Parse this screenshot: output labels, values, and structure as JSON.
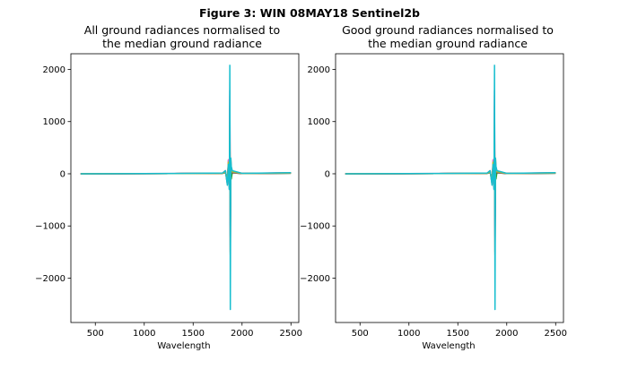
{
  "figure": {
    "suptitle": "Figure 3: WIN 08MAY18  Sentinel2b"
  },
  "chart_data": [
    {
      "type": "line",
      "title_lines": [
        "All ground radiances normalised to",
        "the median ground radiance"
      ],
      "xlabel": "Wavelength",
      "ylabel": "",
      "xlim": [
        250,
        2580
      ],
      "ylim": [
        -2850,
        2300
      ],
      "xticks": [
        500,
        1000,
        1500,
        2000,
        2500
      ],
      "yticks": [
        -2000,
        -1000,
        0,
        1000,
        2000
      ],
      "xtick_labels": [
        "500",
        "1000",
        "1500",
        "2000",
        "2500"
      ],
      "ytick_labels": [
        "−2000",
        "−1000",
        "0",
        "1000",
        "2000"
      ],
      "grid": false,
      "series": [
        {
          "color": "#1f77b4",
          "x": [
            350,
            1300,
            1800,
            1830,
            1850,
            1860,
            1870,
            1875,
            1880,
            1885,
            1890,
            1900,
            2000,
            2500
          ],
          "y": [
            0,
            4,
            10,
            40,
            -120,
            100,
            -300,
            600,
            -600,
            200,
            -50,
            20,
            5,
            12
          ]
        },
        {
          "color": "#ff7f0e",
          "x": [
            350,
            1300,
            1800,
            1830,
            1850,
            1860,
            1870,
            1875,
            1880,
            1885,
            1890,
            1900,
            2000,
            2500
          ],
          "y": [
            0,
            5,
            12,
            60,
            -200,
            150,
            -250,
            1300,
            -1550,
            300,
            100,
            40,
            8,
            15
          ]
        },
        {
          "color": "#2ca02c",
          "x": [
            350,
            1300,
            1800,
            1830,
            1850,
            1860,
            1870,
            1875,
            1880,
            1885,
            1890,
            1900,
            2000,
            2500
          ],
          "y": [
            0,
            3,
            8,
            20,
            -100,
            120,
            -150,
            600,
            -800,
            150,
            -100,
            30,
            4,
            10
          ]
        },
        {
          "color": "#d62728",
          "x": [
            350,
            1300,
            1800,
            1830,
            1850,
            1860,
            1870,
            1875,
            1880,
            1885,
            1890,
            1900,
            2000,
            2500
          ],
          "y": [
            0,
            4,
            10,
            40,
            -150,
            200,
            -100,
            800,
            -1000,
            100,
            120,
            50,
            6,
            14
          ]
        },
        {
          "color": "#9467bd",
          "x": [
            350,
            1300,
            1800,
            1830,
            1850,
            1860,
            1870,
            1875,
            1880,
            1885,
            1890,
            1900,
            2000,
            2500
          ],
          "y": [
            0,
            5,
            12,
            50,
            -200,
            250,
            -200,
            1600,
            -1200,
            200,
            80,
            30,
            7,
            18
          ]
        },
        {
          "color": "#8c564b",
          "x": [
            350,
            1300,
            1800,
            1830,
            1850,
            1860,
            1870,
            1875,
            1880,
            1885,
            1890,
            1900,
            2000,
            2500
          ],
          "y": [
            0,
            3,
            9,
            30,
            -120,
            130,
            -80,
            900,
            -1500,
            150,
            60,
            20,
            5,
            11
          ]
        },
        {
          "color": "#e377c2",
          "x": [
            350,
            1300,
            1800,
            1830,
            1850,
            1860,
            1870,
            1875,
            1880,
            1885,
            1890,
            1900,
            2000,
            2500
          ],
          "y": [
            0,
            6,
            14,
            60,
            -180,
            270,
            -220,
            1500,
            -1100,
            250,
            90,
            40,
            8,
            20
          ]
        },
        {
          "color": "#7f7f7f",
          "x": [
            350,
            1300,
            1800,
            1830,
            1850,
            1860,
            1870,
            1875,
            1880,
            1885,
            1890,
            1900,
            2000,
            2500
          ],
          "y": [
            0,
            4,
            10,
            30,
            -80,
            160,
            -180,
            700,
            -700,
            180,
            70,
            30,
            6,
            13
          ]
        },
        {
          "color": "#bcbd22",
          "x": [
            350,
            1300,
            1800,
            1830,
            1850,
            1860,
            1870,
            1875,
            1880,
            1885,
            1890,
            1900,
            2000,
            2500
          ],
          "y": [
            0,
            5,
            11,
            40,
            -150,
            220,
            -160,
            1000,
            -900,
            210,
            90,
            40,
            7,
            16
          ]
        },
        {
          "color": "#17becf",
          "x": [
            350,
            1300,
            1800,
            1830,
            1850,
            1860,
            1870,
            1875,
            1880,
            1885,
            1890,
            1900,
            2000,
            2500
          ],
          "y": [
            0,
            6,
            14,
            60,
            -220,
            180,
            -300,
            2080,
            -2600,
            300,
            140,
            60,
            9,
            22
          ]
        }
      ]
    },
    {
      "type": "line",
      "title_lines": [
        "Good ground radiances normalised to",
        "the median ground radiance"
      ],
      "xlabel": "Wavelength",
      "ylabel": "",
      "xlim": [
        250,
        2580
      ],
      "ylim": [
        -2850,
        2300
      ],
      "xticks": [
        500,
        1000,
        1500,
        2000,
        2500
      ],
      "yticks": [
        -2000,
        -1000,
        0,
        1000,
        2000
      ],
      "xtick_labels": [
        "500",
        "1000",
        "1500",
        "2000",
        "2500"
      ],
      "ytick_labels": [
        "−2000",
        "−1000",
        "0",
        "1000",
        "2000"
      ],
      "grid": false,
      "series": [
        {
          "color": "#1f77b4",
          "x": [
            350,
            1300,
            1800,
            1830,
            1850,
            1860,
            1870,
            1875,
            1880,
            1885,
            1890,
            1900,
            2000,
            2500
          ],
          "y": [
            0,
            4,
            10,
            40,
            -120,
            100,
            -300,
            600,
            -600,
            200,
            -50,
            20,
            5,
            12
          ]
        },
        {
          "color": "#ff7f0e",
          "x": [
            350,
            1300,
            1800,
            1830,
            1850,
            1860,
            1870,
            1875,
            1880,
            1885,
            1890,
            1900,
            2000,
            2500
          ],
          "y": [
            0,
            5,
            12,
            60,
            -200,
            150,
            -250,
            1300,
            -1550,
            300,
            100,
            40,
            8,
            15
          ]
        },
        {
          "color": "#2ca02c",
          "x": [
            350,
            1300,
            1800,
            1830,
            1850,
            1860,
            1870,
            1875,
            1880,
            1885,
            1890,
            1900,
            2000,
            2500
          ],
          "y": [
            0,
            3,
            8,
            20,
            -100,
            120,
            -150,
            600,
            -800,
            150,
            -100,
            30,
            4,
            10
          ]
        },
        {
          "color": "#d62728",
          "x": [
            350,
            1300,
            1800,
            1830,
            1850,
            1860,
            1870,
            1875,
            1880,
            1885,
            1890,
            1900,
            2000,
            2500
          ],
          "y": [
            0,
            4,
            10,
            40,
            -150,
            200,
            -100,
            800,
            -1000,
            100,
            120,
            50,
            6,
            14
          ]
        },
        {
          "color": "#9467bd",
          "x": [
            350,
            1300,
            1800,
            1830,
            1850,
            1860,
            1870,
            1875,
            1880,
            1885,
            1890,
            1900,
            2000,
            2500
          ],
          "y": [
            0,
            5,
            12,
            50,
            -200,
            250,
            -200,
            1600,
            -1200,
            200,
            80,
            30,
            7,
            18
          ]
        },
        {
          "color": "#8c564b",
          "x": [
            350,
            1300,
            1800,
            1830,
            1850,
            1860,
            1870,
            1875,
            1880,
            1885,
            1890,
            1900,
            2000,
            2500
          ],
          "y": [
            0,
            3,
            9,
            30,
            -120,
            130,
            -80,
            900,
            -1500,
            150,
            60,
            20,
            5,
            11
          ]
        },
        {
          "color": "#e377c2",
          "x": [
            350,
            1300,
            1800,
            1830,
            1850,
            1860,
            1870,
            1875,
            1880,
            1885,
            1890,
            1900,
            2000,
            2500
          ],
          "y": [
            0,
            6,
            14,
            60,
            -180,
            270,
            -220,
            1500,
            -1100,
            250,
            90,
            40,
            8,
            20
          ]
        },
        {
          "color": "#7f7f7f",
          "x": [
            350,
            1300,
            1800,
            1830,
            1850,
            1860,
            1870,
            1875,
            1880,
            1885,
            1890,
            1900,
            2000,
            2500
          ],
          "y": [
            0,
            4,
            10,
            30,
            -80,
            160,
            -180,
            700,
            -700,
            180,
            70,
            30,
            6,
            13
          ]
        },
        {
          "color": "#bcbd22",
          "x": [
            350,
            1300,
            1800,
            1830,
            1850,
            1860,
            1870,
            1875,
            1880,
            1885,
            1890,
            1900,
            2000,
            2500
          ],
          "y": [
            0,
            5,
            11,
            40,
            -150,
            220,
            -160,
            1000,
            -900,
            210,
            90,
            40,
            7,
            16
          ]
        },
        {
          "color": "#17becf",
          "x": [
            350,
            1300,
            1800,
            1830,
            1850,
            1860,
            1870,
            1875,
            1880,
            1885,
            1890,
            1900,
            2000,
            2500
          ],
          "y": [
            0,
            6,
            14,
            60,
            -220,
            180,
            -300,
            2080,
            -2600,
            300,
            140,
            60,
            9,
            22
          ]
        }
      ]
    }
  ]
}
